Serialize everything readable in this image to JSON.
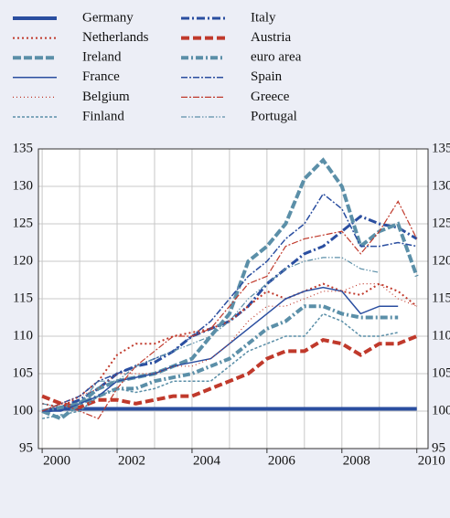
{
  "chart_data": {
    "type": "line",
    "x": [
      2000,
      2000.5,
      2001,
      2001.5,
      2002,
      2002.5,
      2003,
      2003.5,
      2004,
      2004.5,
      2005,
      2005.5,
      2006,
      2006.5,
      2007,
      2007.5,
      2008,
      2008.5,
      2009,
      2009.5,
      2010
    ],
    "xlim": [
      1999.9,
      2010.3
    ],
    "xticks": [
      2000,
      2002,
      2004,
      2006,
      2008,
      2010
    ],
    "xgrid": [
      2000,
      2001,
      2002,
      2003,
      2004,
      2005,
      2006,
      2007,
      2008,
      2009,
      2010
    ],
    "ylim": [
      95,
      135
    ],
    "yticks": [
      95,
      100,
      105,
      110,
      115,
      120,
      125,
      130,
      135
    ],
    "grid": true,
    "series": [
      {
        "name": "Germany",
        "color": "#2a4ea0",
        "width": 4,
        "dash": "none",
        "values": [
          100,
          100.3,
          100.3,
          100.3,
          100.3,
          100.3,
          100.3,
          100.3,
          100.3,
          100.3,
          100.3,
          100.3,
          100.3,
          100.3,
          100.3,
          100.3,
          100.3,
          100.3,
          100.3,
          100.3,
          100.3
        ]
      },
      {
        "name": "Italy",
        "color": "#2a4ea0",
        "width": 3,
        "dash": "9,3,2,3",
        "values": [
          100,
          100.5,
          101.5,
          103,
          105,
          106,
          106.5,
          108,
          110,
          111,
          112,
          114,
          117,
          119,
          121,
          122,
          124,
          126,
          125,
          124.5,
          123
        ]
      },
      {
        "name": "Netherlands",
        "color": "#c0392b",
        "width": 2,
        "dash": "2,3",
        "values": [
          101,
          100.5,
          102,
          104,
          107.5,
          109,
          109,
          110,
          110.5,
          111,
          112,
          114,
          116,
          115,
          116,
          117,
          116,
          115.5,
          117,
          116,
          114
        ]
      },
      {
        "name": "Austria",
        "color": "#c0392b",
        "width": 4,
        "dash": "9,4",
        "values": [
          102,
          101,
          100.5,
          101.5,
          101.5,
          101,
          101.5,
          102,
          102,
          103,
          104,
          105,
          107,
          108,
          108,
          109.5,
          109,
          107.5,
          109,
          109,
          110
        ]
      },
      {
        "name": "Ireland",
        "color": "#5b8fa8",
        "width": 4,
        "dash": "9,3",
        "values": [
          100,
          99,
          101,
          103,
          104,
          104.5,
          105,
          106,
          107,
          110,
          113,
          120,
          122,
          125,
          131,
          133.5,
          130,
          122,
          124,
          125,
          118
        ]
      },
      {
        "name": "euro area",
        "color": "#5b8fa8",
        "width": 4,
        "dash": "8,3,2,3",
        "values": [
          100,
          100.5,
          101,
          102,
          103,
          103,
          104,
          104.5,
          105,
          106,
          107,
          109,
          111,
          112,
          114,
          114,
          113,
          112.5,
          112.5,
          112.5,
          null
        ]
      },
      {
        "name": "France",
        "color": "#2a4ea0",
        "width": 1.5,
        "dash": "none",
        "values": [
          100,
          100,
          101,
          102,
          104,
          104.5,
          105,
          106,
          106.5,
          107,
          109,
          111,
          113,
          115,
          116,
          116.5,
          116,
          113,
          114,
          114,
          null
        ]
      },
      {
        "name": "Spain",
        "color": "#2a4ea0",
        "width": 1.5,
        "dash": "7,2,2,2",
        "values": [
          100,
          101,
          102,
          104,
          105,
          106,
          107,
          108,
          110,
          112,
          115,
          118,
          120,
          123,
          125,
          129,
          127,
          122,
          122,
          122.5,
          122
        ]
      },
      {
        "name": "Belgium",
        "color": "#c0392b",
        "width": 1.2,
        "dash": "1,3",
        "values": [
          100,
          101,
          102,
          103,
          105,
          105,
          105,
          106,
          106,
          107,
          109,
          112,
          114,
          114,
          115,
          116,
          116,
          117,
          117,
          115,
          114
        ]
      },
      {
        "name": "Greece",
        "color": "#c0392b",
        "width": 1.2,
        "dash": "7,2,2,2",
        "values": [
          100,
          101,
          100,
          99,
          103,
          106,
          108,
          110,
          110,
          111,
          114,
          117,
          118,
          122,
          123,
          123.5,
          124,
          121,
          124,
          128,
          123
        ]
      },
      {
        "name": "Finland",
        "color": "#5b8fa8",
        "width": 1.5,
        "dash": "3,2",
        "values": [
          99,
          99.5,
          100,
          102,
          103,
          102.5,
          103,
          104,
          104,
          104,
          106,
          108,
          109,
          110,
          110,
          113,
          112,
          110,
          110,
          110.5,
          null
        ]
      },
      {
        "name": "Portugal",
        "color": "#5b8fa8",
        "width": 1.2,
        "dash": "6,2,1.5,2,1.5,2",
        "values": [
          101,
          100.5,
          101,
          104,
          104,
          106,
          107,
          108,
          109,
          110,
          112,
          115,
          117,
          119,
          120,
          120.5,
          120.5,
          119,
          118.5,
          null,
          null
        ]
      }
    ]
  }
}
